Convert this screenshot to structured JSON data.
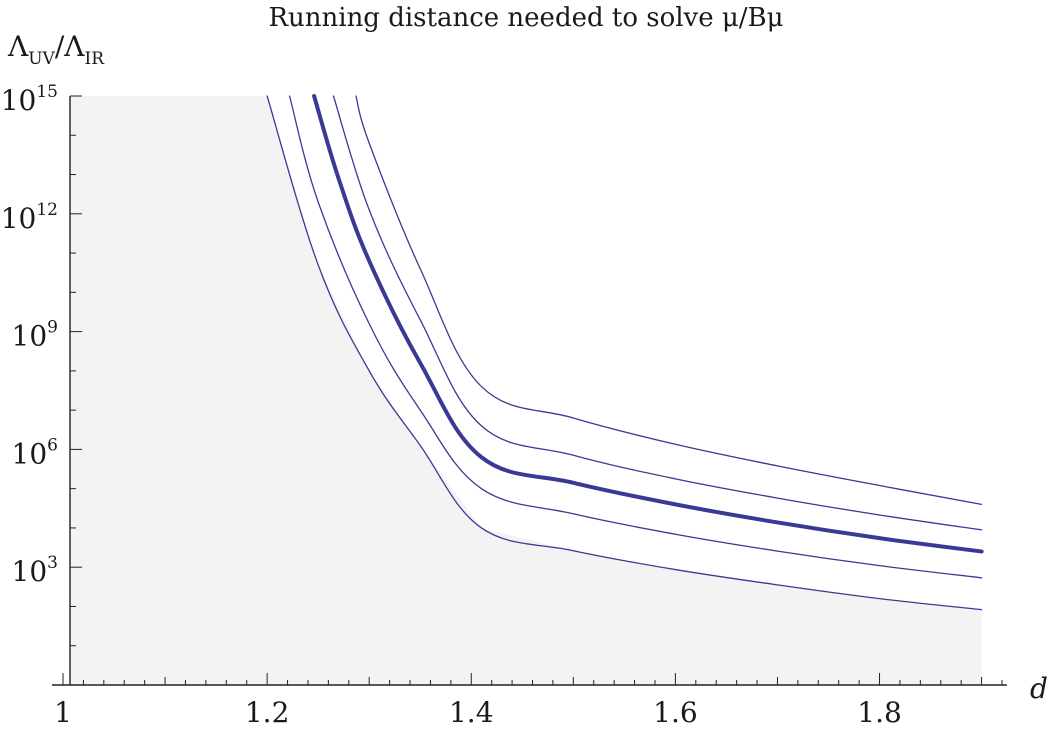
{
  "chart_data": {
    "type": "line",
    "title": "Running distance needed to solve μ/Bμ",
    "xlabel": "d",
    "ylabel": {
      "base": "Λ",
      "num_sub": "UV",
      "slash": "/",
      "den_sub": "IR"
    },
    "xlim": [
      1.0,
      1.92
    ],
    "ylim_log10": [
      0,
      15
    ],
    "log_y": true,
    "grid": false,
    "x_ticks": [
      {
        "value": 1.0,
        "label": "1"
      },
      {
        "value": 1.2,
        "label": "1.2"
      },
      {
        "value": 1.4,
        "label": "1.4"
      },
      {
        "value": 1.6,
        "label": "1.6"
      },
      {
        "value": 1.8,
        "label": "1.8"
      }
    ],
    "y_ticks": [
      {
        "value_log10": 3,
        "base": "10",
        "exp": "3"
      },
      {
        "value_log10": 6,
        "base": "10",
        "exp": "6"
      },
      {
        "value_log10": 9,
        "base": "10",
        "exp": "9"
      },
      {
        "value_log10": 12,
        "base": "10",
        "exp": "12"
      },
      {
        "value_log10": 15,
        "base": "10",
        "exp": "15"
      }
    ],
    "shaded_region": {
      "color": "#f3f3f3"
    },
    "line_color": "#3a3a94",
    "series": [
      {
        "emphasis": false,
        "points": [
          [
            1.2,
            15
          ],
          [
            1.25,
            10.7
          ],
          [
            1.3,
            8.0
          ],
          [
            1.35,
            6.1
          ],
          [
            1.41,
            4.0
          ],
          [
            1.5,
            3.42
          ],
          [
            1.6,
            2.94
          ],
          [
            1.7,
            2.55
          ],
          [
            1.8,
            2.2
          ],
          [
            1.9,
            1.92
          ]
        ]
      },
      {
        "emphasis": false,
        "points": [
          [
            1.222,
            15
          ],
          [
            1.25,
            12.3
          ],
          [
            1.3,
            9.2
          ],
          [
            1.35,
            7.0
          ],
          [
            1.41,
            5.0
          ],
          [
            1.5,
            4.36
          ],
          [
            1.6,
            3.84
          ],
          [
            1.7,
            3.41
          ],
          [
            1.8,
            3.04
          ],
          [
            1.9,
            2.73
          ]
        ]
      },
      {
        "emphasis": true,
        "points": [
          [
            1.246,
            15
          ],
          [
            1.27,
            12.9
          ],
          [
            1.3,
            10.8
          ],
          [
            1.35,
            8.2
          ],
          [
            1.41,
            5.8
          ],
          [
            1.5,
            5.15
          ],
          [
            1.6,
            4.6
          ],
          [
            1.7,
            4.14
          ],
          [
            1.8,
            3.74
          ],
          [
            1.9,
            3.4
          ]
        ]
      },
      {
        "emphasis": false,
        "points": [
          [
            1.265,
            15
          ],
          [
            1.3,
            12.1
          ],
          [
            1.35,
            9.3
          ],
          [
            1.41,
            6.6
          ],
          [
            1.5,
            5.85
          ],
          [
            1.6,
            5.25
          ],
          [
            1.7,
            4.76
          ],
          [
            1.8,
            4.33
          ],
          [
            1.9,
            3.95
          ]
        ]
      },
      {
        "emphasis": false,
        "points": [
          [
            1.287,
            15
          ],
          [
            1.3,
            13.8
          ],
          [
            1.35,
            10.6
          ],
          [
            1.41,
            7.6
          ],
          [
            1.5,
            6.8
          ],
          [
            1.6,
            6.13
          ],
          [
            1.7,
            5.58
          ],
          [
            1.8,
            5.08
          ],
          [
            1.9,
            4.6
          ]
        ]
      }
    ]
  }
}
